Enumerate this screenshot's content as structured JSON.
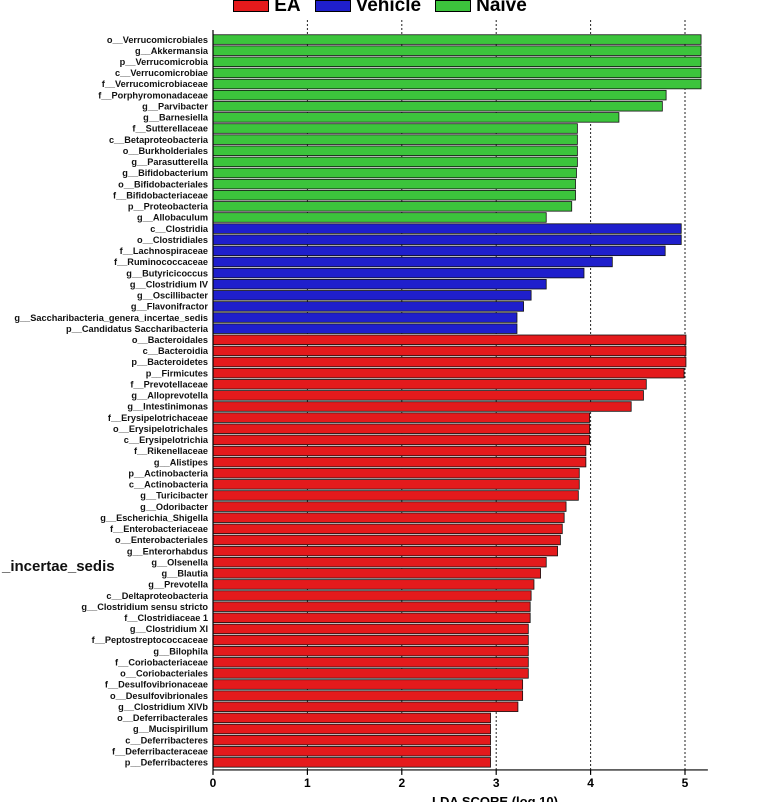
{
  "chart_data": {
    "type": "bar",
    "orientation": "horizontal",
    "xlabel": "LDA SCORE (log 10)",
    "xlim": [
      0,
      5.2
    ],
    "xticks": [
      0,
      1,
      2,
      3,
      4,
      5
    ],
    "grid": "dashed vertical at integer ticks",
    "legend_position": "top-center",
    "stray_label": "_incertae_sedis",
    "legend": [
      {
        "name": "EA",
        "color": "#e41a1c"
      },
      {
        "name": "Vehicle",
        "color": "#1f1fcc"
      },
      {
        "name": "Naïve",
        "color": "#3cc43c"
      }
    ],
    "series": [
      {
        "name": "Naïve",
        "color": "#3cc43c",
        "bars": [
          {
            "label": "o__Verrucomicrobiales",
            "value": 5.17
          },
          {
            "label": "g__Akkermansia",
            "value": 5.17
          },
          {
            "label": "p__Verrucomicrobia",
            "value": 5.17
          },
          {
            "label": "c__Verrucomicrobiae",
            "value": 5.17
          },
          {
            "label": "f__Verrucomicrobiaceae",
            "value": 5.17
          },
          {
            "label": "f__Porphyromonadaceae",
            "value": 4.8
          },
          {
            "label": "g__Parvibacter",
            "value": 4.76
          },
          {
            "label": "g__Barnesiella",
            "value": 4.3
          },
          {
            "label": "f__Sutterellaceae",
            "value": 3.86
          },
          {
            "label": "c__Betaproteobacteria",
            "value": 3.86
          },
          {
            "label": "o__Burkholderiales",
            "value": 3.86
          },
          {
            "label": "g__Parasutterella",
            "value": 3.86
          },
          {
            "label": "g__Bifidobacterium",
            "value": 3.85
          },
          {
            "label": "o__Bifidobacteriales",
            "value": 3.84
          },
          {
            "label": "f__Bifidobacteriaceae",
            "value": 3.84
          },
          {
            "label": "p__Proteobacteria",
            "value": 3.8
          },
          {
            "label": "g__Allobaculum",
            "value": 3.53
          }
        ]
      },
      {
        "name": "Vehicle",
        "color": "#1f1fcc",
        "bars": [
          {
            "label": "c__Clostridia",
            "value": 4.96
          },
          {
            "label": "o__Clostridiales",
            "value": 4.96
          },
          {
            "label": "f__Lachnospiraceae",
            "value": 4.79
          },
          {
            "label": "f__Ruminococcaceae",
            "value": 4.23
          },
          {
            "label": "g__Butyricicoccus",
            "value": 3.93
          },
          {
            "label": "g__Clostridium IV",
            "value": 3.53
          },
          {
            "label": "g__Oscillibacter",
            "value": 3.37
          },
          {
            "label": "g__Flavonifractor",
            "value": 3.29
          },
          {
            "label": "g__Saccharibacteria_genera_incertae_sedis",
            "value": 3.22
          },
          {
            "label": "p__Candidatus Saccharibacteria",
            "value": 3.22
          }
        ]
      },
      {
        "name": "EA",
        "color": "#e41a1c",
        "bars": [
          {
            "label": "o__Bacteroidales",
            "value": 5.01
          },
          {
            "label": "c__Bacteroidia",
            "value": 5.01
          },
          {
            "label": "p__Bacteroidetes",
            "value": 5.01
          },
          {
            "label": "p__Firmicutes",
            "value": 4.99
          },
          {
            "label": "f__Prevotellaceae",
            "value": 4.59
          },
          {
            "label": "g__Alloprevotella",
            "value": 4.56
          },
          {
            "label": "g__Intestinimonas",
            "value": 4.43
          },
          {
            "label": "f__Erysipelotrichaceae",
            "value": 3.99
          },
          {
            "label": "o__Erysipelotrichales",
            "value": 3.99
          },
          {
            "label": "c__Erysipelotrichia",
            "value": 3.99
          },
          {
            "label": "f__Rikenellaceae",
            "value": 3.95
          },
          {
            "label": "g__Alistipes",
            "value": 3.95
          },
          {
            "label": "p__Actinobacteria",
            "value": 3.88
          },
          {
            "label": "c__Actinobacteria",
            "value": 3.88
          },
          {
            "label": "g__Turicibacter",
            "value": 3.87
          },
          {
            "label": "g__Odoribacter",
            "value": 3.74
          },
          {
            "label": "g__Escherichia_Shigella",
            "value": 3.72
          },
          {
            "label": "f__Enterobacteriaceae",
            "value": 3.7
          },
          {
            "label": "o__Enterobacteriales",
            "value": 3.68
          },
          {
            "label": "g__Enterorhabdus",
            "value": 3.65
          },
          {
            "label": "g__Olsenella",
            "value": 3.53
          },
          {
            "label": "g__Blautia",
            "value": 3.47
          },
          {
            "label": "g__Prevotella",
            "value": 3.4
          },
          {
            "label": "c__Deltaproteobacteria",
            "value": 3.37
          },
          {
            "label": "g__Clostridium sensu stricto",
            "value": 3.36
          },
          {
            "label": "f__Clostridiaceae 1",
            "value": 3.36
          },
          {
            "label": "g__Clostridium XI",
            "value": 3.34
          },
          {
            "label": "f__Peptostreptococcaceae",
            "value": 3.34
          },
          {
            "label": "g__Bilophila",
            "value": 3.34
          },
          {
            "label": "f__Coriobacteriaceae",
            "value": 3.34
          },
          {
            "label": "o__Coriobacteriales",
            "value": 3.34
          },
          {
            "label": "f__Desulfovibrionaceae",
            "value": 3.28
          },
          {
            "label": "o__Desulfovibrionales",
            "value": 3.28
          },
          {
            "label": "g__Clostridium XIVb",
            "value": 3.23
          },
          {
            "label": "o__Deferribacterales",
            "value": 2.94
          },
          {
            "label": "g__Mucispirillum",
            "value": 2.94
          },
          {
            "label": "c__Deferribacteres",
            "value": 2.94
          },
          {
            "label": "f__Deferribacteraceae",
            "value": 2.94
          },
          {
            "label": "p__Deferribacteres",
            "value": 2.94
          }
        ]
      }
    ]
  }
}
